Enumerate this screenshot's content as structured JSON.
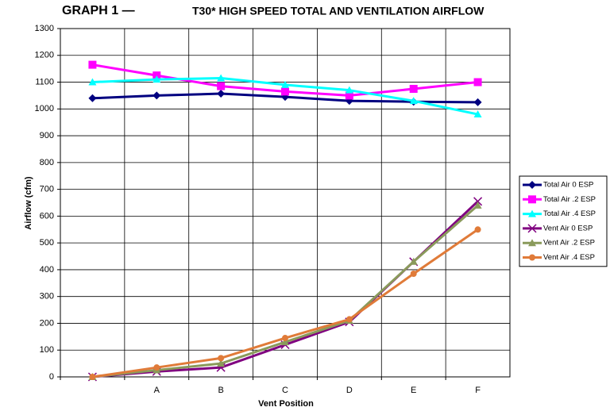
{
  "chart_data": {
    "type": "line",
    "title": "GRAPH  1 —",
    "subtitle": "T30* HIGH SPEED TOTAL AND VENTILATION AIRFLOW",
    "x_label": "Vent Position",
    "y_label": "Airflow (cfm)",
    "categories": [
      null,
      "A",
      "B",
      "C",
      "D",
      "E",
      "F"
    ],
    "ylim": [
      0,
      1300
    ],
    "yticks": [
      0,
      100,
      200,
      300,
      400,
      500,
      600,
      700,
      800,
      900,
      1000,
      1100,
      1200,
      1300
    ],
    "grid": true,
    "legend": "right",
    "series": [
      {
        "name": "Total Air 0 ESP",
        "color": "#000080",
        "marker": "diamond",
        "values": [
          1040,
          1050,
          1057,
          1045,
          1030,
          1027,
          1025
        ]
      },
      {
        "name": "Total Air .2 ESP",
        "color": "#ff00ff",
        "marker": "square",
        "values": [
          1165,
          1125,
          1085,
          1065,
          1050,
          1075,
          1100
        ]
      },
      {
        "name": "Total Air .4 ESP",
        "color": "#00ffff",
        "marker": "triangle",
        "values": [
          1100,
          1110,
          1115,
          1090,
          1070,
          1030,
          980
        ]
      },
      {
        "name": "Vent Air 0 ESP",
        "color": "#800080",
        "marker": "x",
        "values": [
          0,
          20,
          35,
          120,
          205,
          430,
          655
        ]
      },
      {
        "name": "Vent Air .2 ESP",
        "color": "#8a9a5b",
        "marker": "triangle",
        "values": [
          0,
          25,
          50,
          130,
          210,
          430,
          640
        ]
      },
      {
        "name": "Vent Air .4 ESP",
        "color": "#e07b39",
        "marker": "circle",
        "values": [
          0,
          35,
          70,
          145,
          215,
          385,
          550
        ]
      }
    ]
  }
}
